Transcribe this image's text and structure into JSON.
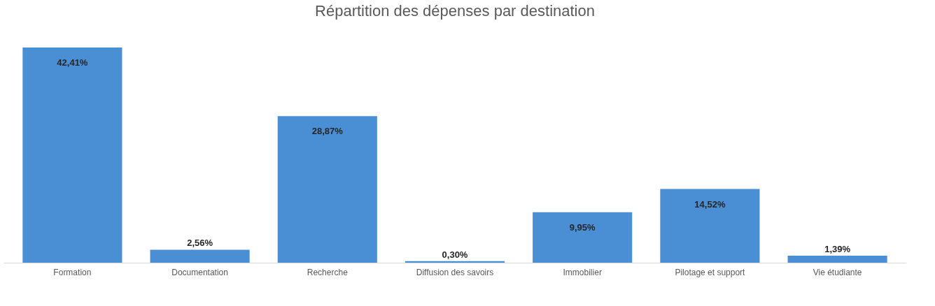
{
  "chart_data": {
    "type": "bar",
    "title": "Répartition des dépenses par destination",
    "categories": [
      "Formation",
      "Documentation",
      "Recherche",
      "Diffusion des savoirs",
      "Immobilier",
      "Pilotage et support",
      "Vie étudiante"
    ],
    "values": [
      42.41,
      2.56,
      28.87,
      0.3,
      9.95,
      14.52,
      1.39
    ],
    "value_labels": [
      "42,41%",
      "2,56%",
      "28,87%",
      "0,30%",
      "9,95%",
      "14,52%",
      "1,39%"
    ],
    "color": "#4a8fd4",
    "grid": false
  }
}
